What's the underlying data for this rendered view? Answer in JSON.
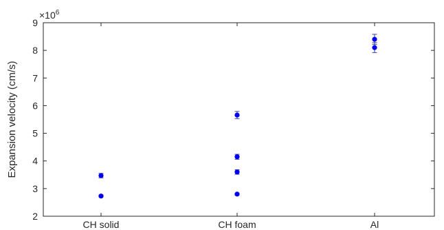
{
  "chart_data": {
    "type": "scatter",
    "title": "",
    "xlabel": "",
    "ylabel": "Expansion velocity (cm/s)",
    "y_multiplier_base": "×10",
    "y_multiplier_exponent": "6",
    "categories": [
      "CH solid",
      "CH foam",
      "Al"
    ],
    "ylim": [
      2,
      9
    ],
    "yticks": [
      2,
      3,
      4,
      5,
      6,
      7,
      8,
      9
    ],
    "grid": false,
    "legend": "none",
    "marker_color": "#0000ee",
    "errorbar_color": "#3a3aaa",
    "points": [
      {
        "category": "CH solid",
        "y": 3.47,
        "err": 0.08
      },
      {
        "category": "CH solid",
        "y": 2.73,
        "err": 0.03
      },
      {
        "category": "CH foam",
        "y": 5.66,
        "err": 0.13
      },
      {
        "category": "CH foam",
        "y": 4.15,
        "err": 0.09
      },
      {
        "category": "CH foam",
        "y": 3.6,
        "err": 0.08
      },
      {
        "category": "CH foam",
        "y": 2.8,
        "err": 0.03
      },
      {
        "category": "Al",
        "y": 8.4,
        "err": 0.18
      },
      {
        "category": "Al",
        "y": 8.1,
        "err": 0.18
      }
    ]
  }
}
